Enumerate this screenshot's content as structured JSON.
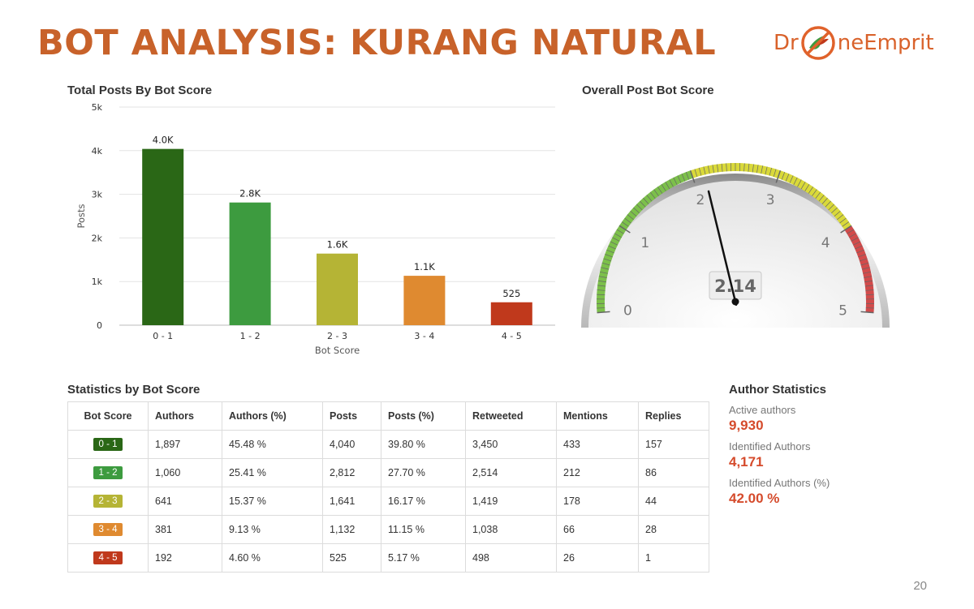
{
  "slide": {
    "title": "BOT ANALYSIS: KURANG NATURAL",
    "page_number": "20",
    "logo": {
      "text_left": "Dr",
      "text_right": "neEmprit",
      "icon": "drone-bird-logo-icon"
    }
  },
  "colors": {
    "accent": "#c8622a",
    "bins": [
      "#2a6716",
      "#3d9b3f",
      "#b5b435",
      "#df8a30",
      "#c0391c"
    ],
    "stat_value": "#d54b2c"
  },
  "sections": {
    "bar_chart_title": "Total Posts By Bot Score",
    "gauge_title": "Overall Post Bot Score",
    "table_title": "Statistics by Bot Score",
    "author_title": "Author Statistics"
  },
  "chart_data": [
    {
      "type": "bar",
      "title": "Total Posts By Bot Score",
      "xlabel": "Bot Score",
      "ylabel": "Posts",
      "categories": [
        "0 - 1",
        "1 - 2",
        "2 - 3",
        "3 - 4",
        "4 - 5"
      ],
      "values": [
        4040,
        2812,
        1641,
        1132,
        525
      ],
      "data_labels": [
        "4.0K",
        "2.8K",
        "1.6K",
        "1.1K",
        "525"
      ],
      "ylim": [
        0,
        5000
      ],
      "yticks": [
        0,
        1000,
        2000,
        3000,
        4000,
        5000
      ],
      "ytick_labels": [
        "0",
        "1k",
        "2k",
        "3k",
        "4k",
        "5k"
      ],
      "grid": true,
      "legend": "none"
    },
    {
      "type": "gauge",
      "title": "Overall Post Bot Score",
      "value": 2.14,
      "value_label": "2.14",
      "range": [
        0,
        5
      ],
      "tick_labels": [
        "0",
        "1",
        "2",
        "3",
        "4",
        "5"
      ],
      "bands": [
        {
          "from": 0,
          "to": 2,
          "color": "#7cc04a"
        },
        {
          "from": 2,
          "to": 4,
          "color": "#d9d93a"
        },
        {
          "from": 4,
          "to": 5,
          "color": "#d24a4a"
        }
      ]
    }
  ],
  "table": {
    "headers": [
      "Bot Score",
      "Authors",
      "Authors (%)",
      "Posts",
      "Posts (%)",
      "Retweeted",
      "Mentions",
      "Replies"
    ],
    "rows": [
      {
        "score": "0 - 1",
        "cells": [
          "1,897",
          "45.48 %",
          "4,040",
          "39.80 %",
          "3,450",
          "433",
          "157"
        ]
      },
      {
        "score": "1 - 2",
        "cells": [
          "1,060",
          "25.41 %",
          "2,812",
          "27.70 %",
          "2,514",
          "212",
          "86"
        ]
      },
      {
        "score": "2 - 3",
        "cells": [
          "641",
          "15.37 %",
          "1,641",
          "16.17 %",
          "1,419",
          "178",
          "44"
        ]
      },
      {
        "score": "3 - 4",
        "cells": [
          "381",
          "9.13 %",
          "1,132",
          "11.15 %",
          "1,038",
          "66",
          "28"
        ]
      },
      {
        "score": "4 - 5",
        "cells": [
          "192",
          "4.60 %",
          "525",
          "5.17 %",
          "498",
          "26",
          "1"
        ]
      }
    ]
  },
  "author_stats": [
    {
      "label": "Active authors",
      "value": "9,930"
    },
    {
      "label": "Identified Authors",
      "value": "4,171"
    },
    {
      "label": "Identified Authors (%)",
      "value": "42.00 %"
    }
  ]
}
